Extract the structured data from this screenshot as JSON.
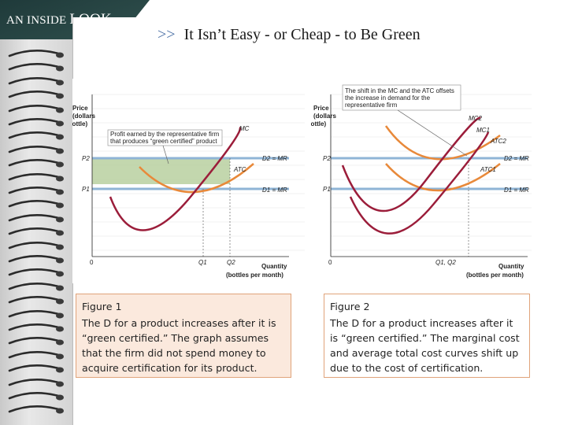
{
  "header": {
    "section_label_prefix": "AN INSIDE",
    "section_label_word": "LOOK",
    "title_arrows": ">>",
    "title": "It Isn’t Easy - or Cheap - to Be Green"
  },
  "figure1": {
    "y_axis_label_1": "Price",
    "y_axis_label_2": "(dollars",
    "y_axis_label_3": "per bottle)",
    "x_axis_label_1": "Quantity",
    "x_axis_label_2": "(bottles per month)",
    "origin": "0",
    "p2": "P2",
    "p1": "P1",
    "q1": "Q1",
    "q2": "Q2",
    "mc": "MC",
    "atc": "ATC",
    "d2_label": "D2 = MR",
    "d1_label": "D1 = MR",
    "annotation_1": "Profit earned by the representative firm",
    "annotation_2": "that produces “green certified” product"
  },
  "figure2": {
    "y_axis_label_1": "Price",
    "y_axis_label_2": "(dollars",
    "y_axis_label_3": "per bottle)",
    "x_axis_label_1": "Quantity",
    "x_axis_label_2": "(bottles per month)",
    "origin": "0",
    "p2": "P2",
    "p1": "P1",
    "q_label": "Q1, Q2",
    "mc2": "MC2",
    "mc1": "MC1",
    "atc2": "ATC2",
    "atc1": "ATC1",
    "d2_label": "D2 = MR",
    "d1_label": "D1 = MR",
    "annotation_1": "The shift in the MC and the ATC offsets",
    "annotation_2": "the increase in demand for the",
    "annotation_3": "representative firm"
  },
  "captions": {
    "fig1_title": "Figure 1",
    "fig1_text": "The D for a product increases after it is “green certified.” The graph assumes that the firm did not spend money to acquire certification for its product.",
    "fig2_title": "Figure 2",
    "fig2_text": "The D for a product increases after it is “green certified.” The marginal cost and average total cost curves shift up due to the cost of certification."
  },
  "colors": {
    "mc_curve": "#9b1d3a",
    "atc_curve": "#e8893a",
    "demand_line": "#8fb4d6",
    "profit_fill": "#b8d0a0",
    "caption_bg": "#fbe9dd",
    "caption_border": "#e0a37a"
  }
}
